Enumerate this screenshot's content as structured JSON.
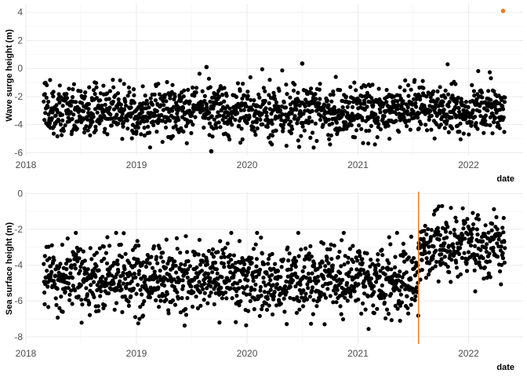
{
  "chart_data": [
    {
      "type": "scatter",
      "title": "",
      "xlabel": "date",
      "ylabel": "Wave surge height (m)",
      "xlim": [
        "2018-01-01",
        "2022-06-30"
      ],
      "ylim": [
        -6.2,
        4.6
      ],
      "x_ticks": [
        "2018",
        "2019",
        "2020",
        "2021",
        "2022"
      ],
      "y_ticks": [
        -6,
        -4,
        -2,
        0,
        2,
        4
      ],
      "grid": true,
      "point_color": "#000000",
      "series": [
        {
          "x_start": "2018-03-01",
          "x_end": "2022-05-01",
          "frequency": "daily",
          "mean": -3.0,
          "spread_sd": 0.95,
          "y_range": [
            -5.9,
            0.3
          ]
        }
      ],
      "annotations": [
        {
          "kind": "point",
          "x": "2022-04-25",
          "y": 4.1,
          "color": "#e67e22"
        },
        {
          "kind": "point",
          "x": "2019-08-20",
          "y": 0.1,
          "color": "#000000"
        },
        {
          "kind": "point",
          "x": "2020-07-01",
          "y": 0.35,
          "color": "#000000"
        },
        {
          "kind": "point",
          "x": "2019-09-05",
          "y": -5.9,
          "color": "#000000"
        }
      ]
    },
    {
      "type": "scatter",
      "title": "",
      "xlabel": "date",
      "ylabel": "Sea surface height (m)",
      "xlim": [
        "2018-01-01",
        "2022-06-30"
      ],
      "ylim": [
        -8.4,
        0.1
      ],
      "x_ticks": [
        "2018",
        "2019",
        "2020",
        "2021",
        "2022"
      ],
      "y_ticks": [
        -8,
        -6,
        -4,
        -2,
        0
      ],
      "grid": true,
      "point_color": "#000000",
      "series": [
        {
          "x_start": "2018-03-01",
          "x_end": "2021-07-20",
          "frequency": "daily",
          "mean": -4.8,
          "spread_sd": 1.0,
          "y_range": [
            -8.0,
            -2.2
          ]
        },
        {
          "x_start": "2021-07-20",
          "x_end": "2022-05-01",
          "frequency": "daily",
          "mean": -3.0,
          "spread_sd": 0.9,
          "y_range": [
            -5.8,
            -0.7
          ]
        }
      ],
      "annotations": [
        {
          "kind": "vline",
          "x": "2021-07-20",
          "color": "#e67e22"
        }
      ]
    }
  ]
}
